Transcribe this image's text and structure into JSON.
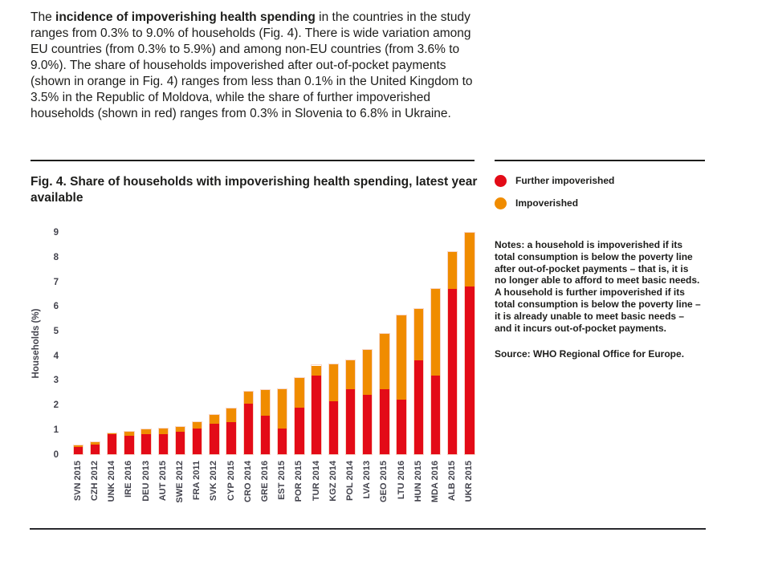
{
  "page": {
    "intro": {
      "lead": "The ",
      "bold": "incidence of impoverishing health spending",
      "rest": " in the countries in the study ranges from 0.3% to 9.0% of households (Fig. 4). There is wide variation among EU countries (from 0.3% to 5.9%) and among non-EU countries (from 3.6% to 9.0%). The share of households impoverished after out-of-pocket payments (shown in orange in Fig. 4) ranges from less than 0.1% in the United Kingdom to 3.5% in the Republic of Moldova, while the share of further impoverished households (shown in red) ranges from 0.3% in Slovenia to 6.8% in Ukraine."
    },
    "figure": {
      "title": "Fig. 4. Share of households with impoverishing health spending, latest year available"
    },
    "notes": "Notes: a household is impoverished if its total consumption is below the poverty line after out-of-pocket payments – that is, it is no longer able to afford to meet basic needs. A household is further impoverished if its total consumption is below the poverty line – it is already unable to meet basic needs – and it incurs out-of-pocket payments.",
    "source": "Source: WHO Regional Office for Europe.",
    "colors": {
      "red": "#e30b17",
      "orange": "#f08c00",
      "text": "#1d1d1b",
      "axis_text": "#43434d"
    }
  },
  "chart_data": {
    "type": "bar",
    "stacked": true,
    "title": "Fig. 4. Share of households with impoverishing health spending, latest year available",
    "xlabel": "",
    "ylabel": "Households (%)",
    "ylim": [
      0,
      9
    ],
    "yticks": [
      0,
      1,
      2,
      3,
      4,
      5,
      6,
      7,
      8,
      9
    ],
    "grid": false,
    "legend_position": "top-right",
    "categories": [
      "SVN 2015",
      "CZH 2012",
      "UNK 2014",
      "IRE 2016",
      "DEU 2013",
      "AUT 2015",
      "SWE 2012",
      "FRA 2011",
      "SVK 2012",
      "CYP 2015",
      "CRO 2014",
      "GRE 2016",
      "EST 2015",
      "POR 2015",
      "TUR 2014",
      "KGZ 2014",
      "POL 2014",
      "LVA 2013",
      "GEO 2015",
      "LTU 2016",
      "HUN 2015",
      "MDA 2016",
      "ALB 2015",
      "UKR 2015"
    ],
    "series": [
      {
        "name": "Further impoverished",
        "color": "#e30b17",
        "values": [
          0.3,
          0.4,
          0.8,
          0.75,
          0.8,
          0.8,
          0.9,
          1.05,
          1.25,
          1.3,
          2.05,
          1.55,
          1.05,
          1.9,
          3.2,
          2.15,
          2.65,
          2.4,
          2.65,
          2.2,
          3.8,
          3.2,
          6.7,
          6.8
        ]
      },
      {
        "name": "Impoverished",
        "color": "#f08c00",
        "values": [
          0.05,
          0.1,
          0.05,
          0.15,
          0.2,
          0.25,
          0.2,
          0.25,
          0.35,
          0.55,
          0.5,
          1.05,
          1.6,
          1.2,
          0.4,
          1.5,
          1.15,
          1.85,
          2.25,
          3.45,
          2.1,
          3.5,
          1.5,
          2.2
        ]
      }
    ],
    "totals": [
      0.35,
      0.5,
      0.85,
      0.9,
      1.0,
      1.05,
      1.1,
      1.3,
      1.6,
      1.85,
      2.55,
      2.6,
      2.65,
      3.1,
      3.6,
      3.65,
      3.8,
      4.25,
      4.9,
      5.65,
      5.9,
      6.7,
      8.2,
      9.0
    ]
  }
}
